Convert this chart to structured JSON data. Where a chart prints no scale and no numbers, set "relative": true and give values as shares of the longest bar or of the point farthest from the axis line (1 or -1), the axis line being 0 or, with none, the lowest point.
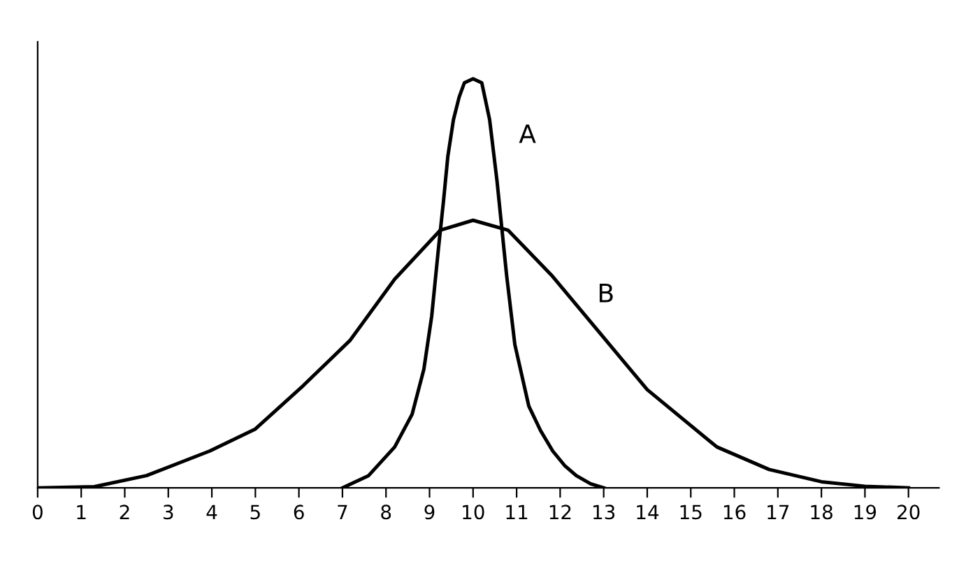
{
  "chart_data": {
    "type": "line",
    "relative": true,
    "xlim": [
      0,
      20.7
    ],
    "xticks": [
      0,
      1,
      2,
      3,
      4,
      5,
      6,
      7,
      8,
      9,
      10,
      11,
      12,
      13,
      14,
      15,
      16,
      17,
      18,
      19,
      20
    ],
    "grid": false,
    "legend": false,
    "marker": "none",
    "line_style": "solid",
    "series": [
      {
        "name": "A",
        "color": "#000000",
        "x": [
          7.0,
          7.6,
          8.2,
          8.6,
          8.87,
          9.05,
          9.2,
          9.32,
          9.42,
          9.55,
          9.68,
          9.8,
          10.0,
          10.2,
          10.38,
          10.55,
          10.77,
          10.96,
          11.28,
          11.55,
          11.83,
          12.1,
          12.37,
          12.7,
          13.0
        ],
        "values": [
          0,
          0.03,
          0.1,
          0.18,
          0.29,
          0.42,
          0.58,
          0.7,
          0.81,
          0.9,
          0.955,
          0.99,
          1,
          0.99,
          0.9,
          0.75,
          0.52,
          0.35,
          0.2,
          0.14,
          0.09,
          0.055,
          0.03,
          0.01,
          0
        ]
      },
      {
        "name": "B",
        "color": "#000000",
        "x": [
          0,
          1.3,
          2.5,
          3.95,
          5.0,
          6.1,
          7.17,
          8.2,
          9.25,
          10.0,
          10.8,
          11.8,
          12.9,
          14.0,
          15.6,
          16.8,
          18.0,
          19.0,
          20.0
        ],
        "values": [
          0,
          0.003,
          0.03,
          0.09,
          0.144,
          0.25,
          0.36,
          0.51,
          0.63,
          0.654,
          0.63,
          0.52,
          0.38,
          0.24,
          0.1,
          0.045,
          0.015,
          0.004,
          0
        ]
      }
    ]
  }
}
